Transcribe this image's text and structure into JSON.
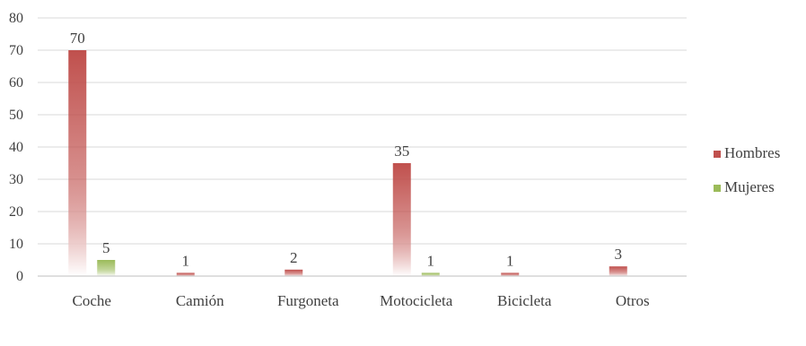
{
  "chart_data": {
    "type": "bar",
    "categories": [
      "Coche",
      "Camión",
      "Furgoneta",
      "Motocicleta",
      "Bicicleta",
      "Otros"
    ],
    "series": [
      {
        "name": "Hombres",
        "values": [
          70,
          1,
          2,
          35,
          1,
          3
        ],
        "labels": [
          "70",
          "1",
          "2",
          "35",
          "1",
          "3"
        ],
        "color": "#c0504d"
      },
      {
        "name": "Mujeres",
        "values": [
          5,
          0,
          0,
          1,
          0,
          0
        ],
        "labels": [
          "5",
          null,
          null,
          "1",
          null,
          null
        ],
        "color": "#9bbb59"
      }
    ],
    "ylim": [
      0,
      80
    ],
    "yticks": [
      "0",
      "10",
      "20",
      "30",
      "40",
      "50",
      "60",
      "70",
      "80"
    ],
    "grid": true,
    "legend_position": "right"
  }
}
